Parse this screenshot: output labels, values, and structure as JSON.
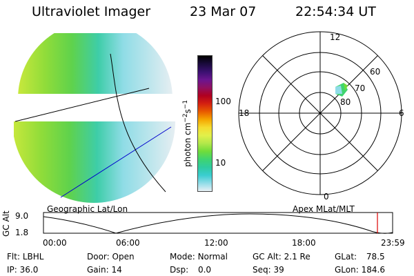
{
  "header": {
    "instrument": "Ultraviolet Imager",
    "date": "23 Mar 07",
    "time": "22:54:34 UT"
  },
  "colorbar": {
    "unit_label": "photon cm",
    "unit_exp1": "−2",
    "unit_s": "s",
    "unit_exp2": "−1",
    "tick_high": "100",
    "tick_low": "10",
    "colors": [
      "#000000",
      "#1a0a3c",
      "#3a1070",
      "#6a1590",
      "#901060",
      "#b00020",
      "#d42010",
      "#e85a00",
      "#f5a500",
      "#f5dc30",
      "#e2f04a",
      "#b2e84a",
      "#70dc3a",
      "#3fd470",
      "#2fcca0",
      "#3acdd0",
      "#90dce8",
      "#e8f0f5"
    ]
  },
  "geo_panel": {
    "label": "Geographic Lat/Lon"
  },
  "polar_panel": {
    "label": "Apex MLat/MLT",
    "mlt_12": "12",
    "mlt_18": "18",
    "mlt_6": "6",
    "mlt_0": "0",
    "lat_60": "60",
    "lat_70": "70",
    "lat_80": "80"
  },
  "altitude_plot": {
    "ylabel": "GC Alt",
    "ytick_high": "9.0",
    "ytick_low": "1.8",
    "xticks": [
      "00:00",
      "06:00",
      "12:00",
      "18:00",
      "23:59"
    ],
    "marker_color": "#dd0000"
  },
  "info": {
    "flt_label": "Flt:",
    "flt_value": "LBHL",
    "ip_label": "IP:",
    "ip_value": "36.0",
    "door_label": "Door:",
    "door_value": "Open",
    "gain_label": "Gain:",
    "gain_value": "14",
    "mode_label": "Mode:",
    "mode_value": "Normal",
    "dsp_label": "Dsp:",
    "dsp_value": "0.0",
    "gcalt_label": "GC Alt:",
    "gcalt_value": "2.1 Re",
    "seq_label": "Seq:",
    "seq_value": "39",
    "glat_label": "GLat:",
    "glat_value": "78.5",
    "glon_label": "GLon:",
    "glon_value": "184.6"
  }
}
